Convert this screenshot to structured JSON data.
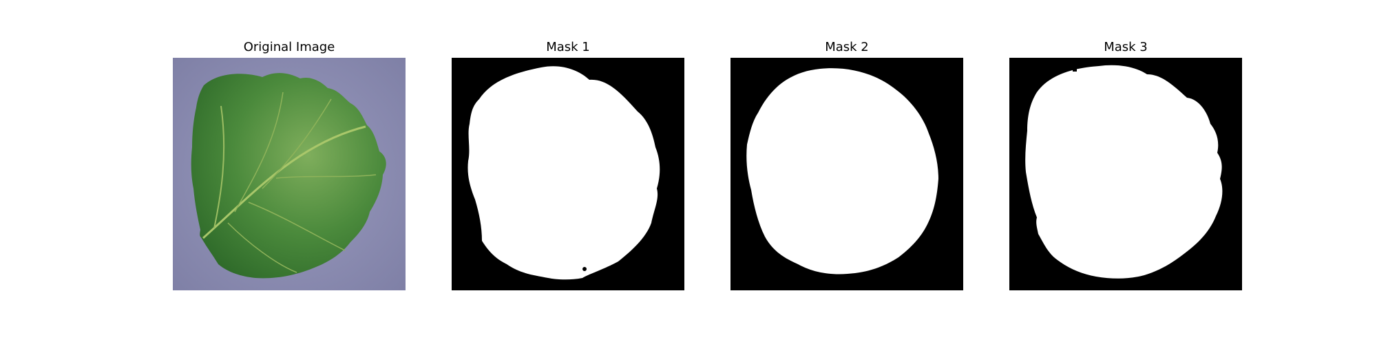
{
  "figure": {
    "panels": [
      {
        "title": "Original Image",
        "kind": "photo"
      },
      {
        "title": "Mask 1",
        "kind": "mask"
      },
      {
        "title": "Mask 2",
        "kind": "mask"
      },
      {
        "title": "Mask 3",
        "kind": "mask"
      }
    ],
    "colors": {
      "background_photo": "#8e8fb4",
      "leaf_dark": "#2f6b2a",
      "leaf_mid": "#4b8a3c",
      "leaf_light": "#7fae5c",
      "mask_background": "#000000",
      "mask_foreground": "#ffffff"
    }
  }
}
